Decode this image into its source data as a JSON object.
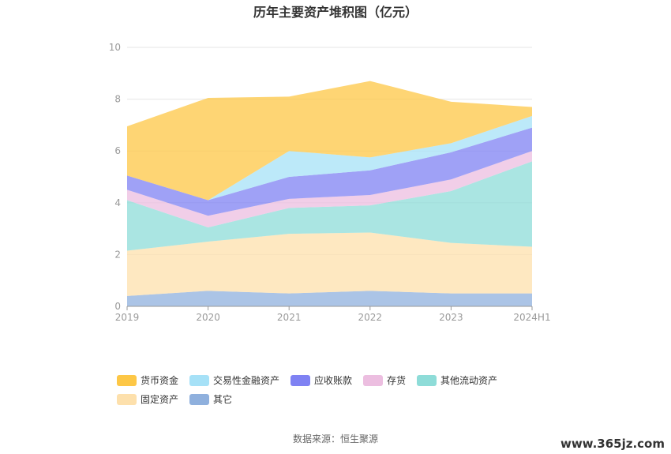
{
  "title": "历年主要资产堆积图（亿元）",
  "source": "数据来源：恒生聚源",
  "watermark": "www.365jz.com",
  "chart_data": {
    "type": "area",
    "stacked": true,
    "categories": [
      "2019",
      "2020",
      "2021",
      "2022",
      "2023",
      "2024H1"
    ],
    "ylim": [
      0,
      10
    ],
    "yticks": [
      "0",
      "2",
      "4",
      "6",
      "8",
      "10"
    ],
    "grid": true,
    "legend_position": "bottom",
    "series": [
      {
        "name": "其它",
        "color": "#8fb0dd",
        "values": [
          0.4,
          0.6,
          0.5,
          0.6,
          0.5,
          0.5
        ]
      },
      {
        "name": "固定资产",
        "color": "#fde0ac",
        "values": [
          1.75,
          1.9,
          2.3,
          2.25,
          1.95,
          1.8
        ]
      },
      {
        "name": "其他流动资产",
        "color": "#8edcd8",
        "values": [
          1.95,
          0.55,
          1.0,
          1.05,
          2.0,
          3.3
        ]
      },
      {
        "name": "存货",
        "color": "#ecbee0",
        "values": [
          0.4,
          0.45,
          0.35,
          0.4,
          0.45,
          0.4
        ]
      },
      {
        "name": "应收账款",
        "color": "#7f82f3",
        "values": [
          0.55,
          0.6,
          0.85,
          0.95,
          1.05,
          0.9
        ]
      },
      {
        "name": "交易性金融资产",
        "color": "#a6e1f7",
        "values": [
          0.0,
          0.0,
          1.0,
          0.5,
          0.35,
          0.45
        ]
      },
      {
        "name": "货币资金",
        "color": "#fdc746",
        "values": [
          1.9,
          3.95,
          2.1,
          2.95,
          1.6,
          0.35
        ]
      }
    ],
    "legend_order": [
      "货币资金",
      "交易性金融资产",
      "应收账款",
      "存货",
      "其他流动资产",
      "固定资产",
      "其它"
    ]
  }
}
